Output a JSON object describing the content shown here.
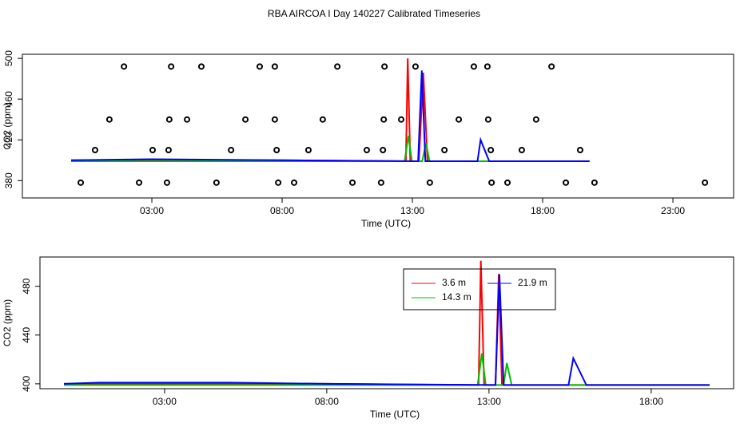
{
  "chart_data": [
    {
      "type": "line",
      "title": "RBA AIRCOA I  Day 140227  Calibrated Timeseries",
      "xlabel": "Time (UTC)",
      "ylabel": "CO2 (ppm)",
      "xlim": [
        -1.97,
        25.33
      ],
      "xticks": [
        {
          "value": 3,
          "label": "03:00"
        },
        {
          "value": 8,
          "label": "08:00"
        },
        {
          "value": 13,
          "label": "13:00"
        },
        {
          "value": 18,
          "label": "18:00"
        },
        {
          "value": 23,
          "label": "23:00"
        }
      ],
      "ylim": [
        363,
        504
      ],
      "yticks": [
        380,
        420,
        460,
        500
      ],
      "series": [
        {
          "type": "scatter",
          "color": "#000000",
          "x": [
            0.27,
            0.82,
            1.37,
            1.93,
            2.51,
            3.03,
            3.58,
            3.64,
            3.67,
            3.74,
            4.35,
            4.9,
            5.48,
            6.04,
            6.59,
            7.14,
            7.72,
            7.72,
            7.79,
            7.85,
            8.46,
            9.01,
            9.56,
            10.12,
            10.7,
            11.25,
            11.8,
            11.87,
            11.9,
            11.93,
            12.57,
            13.12,
            13.67,
            14.23,
            14.78,
            15.36,
            15.88,
            15.91,
            16.01,
            16.04,
            16.65,
            17.2,
            17.75,
            18.34,
            18.89,
            19.44,
            19.99,
            24.23
          ],
          "values": [
            378,
            410,
            440,
            492,
            378,
            410,
            378,
            410,
            440,
            492,
            440,
            492,
            378,
            410,
            440,
            492,
            492,
            440,
            410,
            378,
            378,
            410,
            440,
            492,
            378,
            410,
            378,
            410,
            440,
            492,
            440,
            492,
            378,
            410,
            440,
            492,
            492,
            440,
            410,
            378,
            378,
            410,
            440,
            492,
            378,
            410,
            378,
            378
          ]
        },
        {
          "color": "#ff0000",
          "x": [
            -0.1,
            3,
            8,
            12.6,
            12.75,
            12.82,
            12.92,
            13.25,
            13.42,
            13.58,
            15,
            19.8
          ],
          "values": [
            400,
            400,
            400,
            399,
            399,
            500,
            399,
            399,
            486,
            399,
            399,
            399
          ]
        },
        {
          "color": "#00c000",
          "x": [
            -0.1,
            8,
            12.7,
            12.85,
            12.98,
            13.38,
            13.52,
            13.66,
            19.8
          ],
          "values": [
            399,
            399,
            399,
            424,
            399,
            399,
            417,
            399,
            399
          ]
        },
        {
          "color": "#0000ff",
          "x": [
            -0.1,
            3,
            8,
            13.22,
            13.36,
            13.5,
            15.5,
            15.62,
            15.95,
            19.8
          ],
          "values": [
            400,
            401,
            400,
            399,
            488,
            399,
            399,
            420,
            399,
            399
          ]
        }
      ]
    },
    {
      "type": "line",
      "xlabel": "Time (UTC)",
      "ylabel": "CO2 (ppm)",
      "xlim": [
        -0.84,
        20.54
      ],
      "xticks": [
        {
          "value": 3,
          "label": "03:00"
        },
        {
          "value": 8,
          "label": "08:00"
        },
        {
          "value": 13,
          "label": "13:00"
        },
        {
          "value": 18,
          "label": "18:00"
        }
      ],
      "ylim": [
        396,
        504
      ],
      "yticks": [
        400,
        440,
        480
      ],
      "series": [
        {
          "name": "3.6 m",
          "color": "#ff0000",
          "x": [
            -0.1,
            3,
            8,
            12.6,
            12.68,
            12.75,
            12.85,
            13.2,
            13.3,
            13.4,
            15,
            19.8
          ],
          "values": [
            400,
            400,
            400,
            399,
            399,
            501,
            399,
            399,
            490,
            399,
            399,
            399
          ]
        },
        {
          "name": "14.3 m",
          "color": "#00c000",
          "x": [
            -0.1,
            8,
            12.65,
            12.78,
            12.9,
            13.45,
            13.55,
            13.7,
            19.8
          ],
          "values": [
            399,
            399,
            399,
            425,
            399,
            399,
            417,
            399,
            399
          ]
        },
        {
          "name": "21.9 m",
          "color": "#0000ff",
          "x": [
            -0.1,
            1,
            5,
            8,
            13.2,
            13.32,
            13.45,
            15.45,
            15.6,
            16,
            19.8
          ],
          "values": [
            400,
            401,
            401,
            400,
            399,
            490,
            399,
            399,
            421,
            399,
            399
          ]
        }
      ]
    }
  ]
}
